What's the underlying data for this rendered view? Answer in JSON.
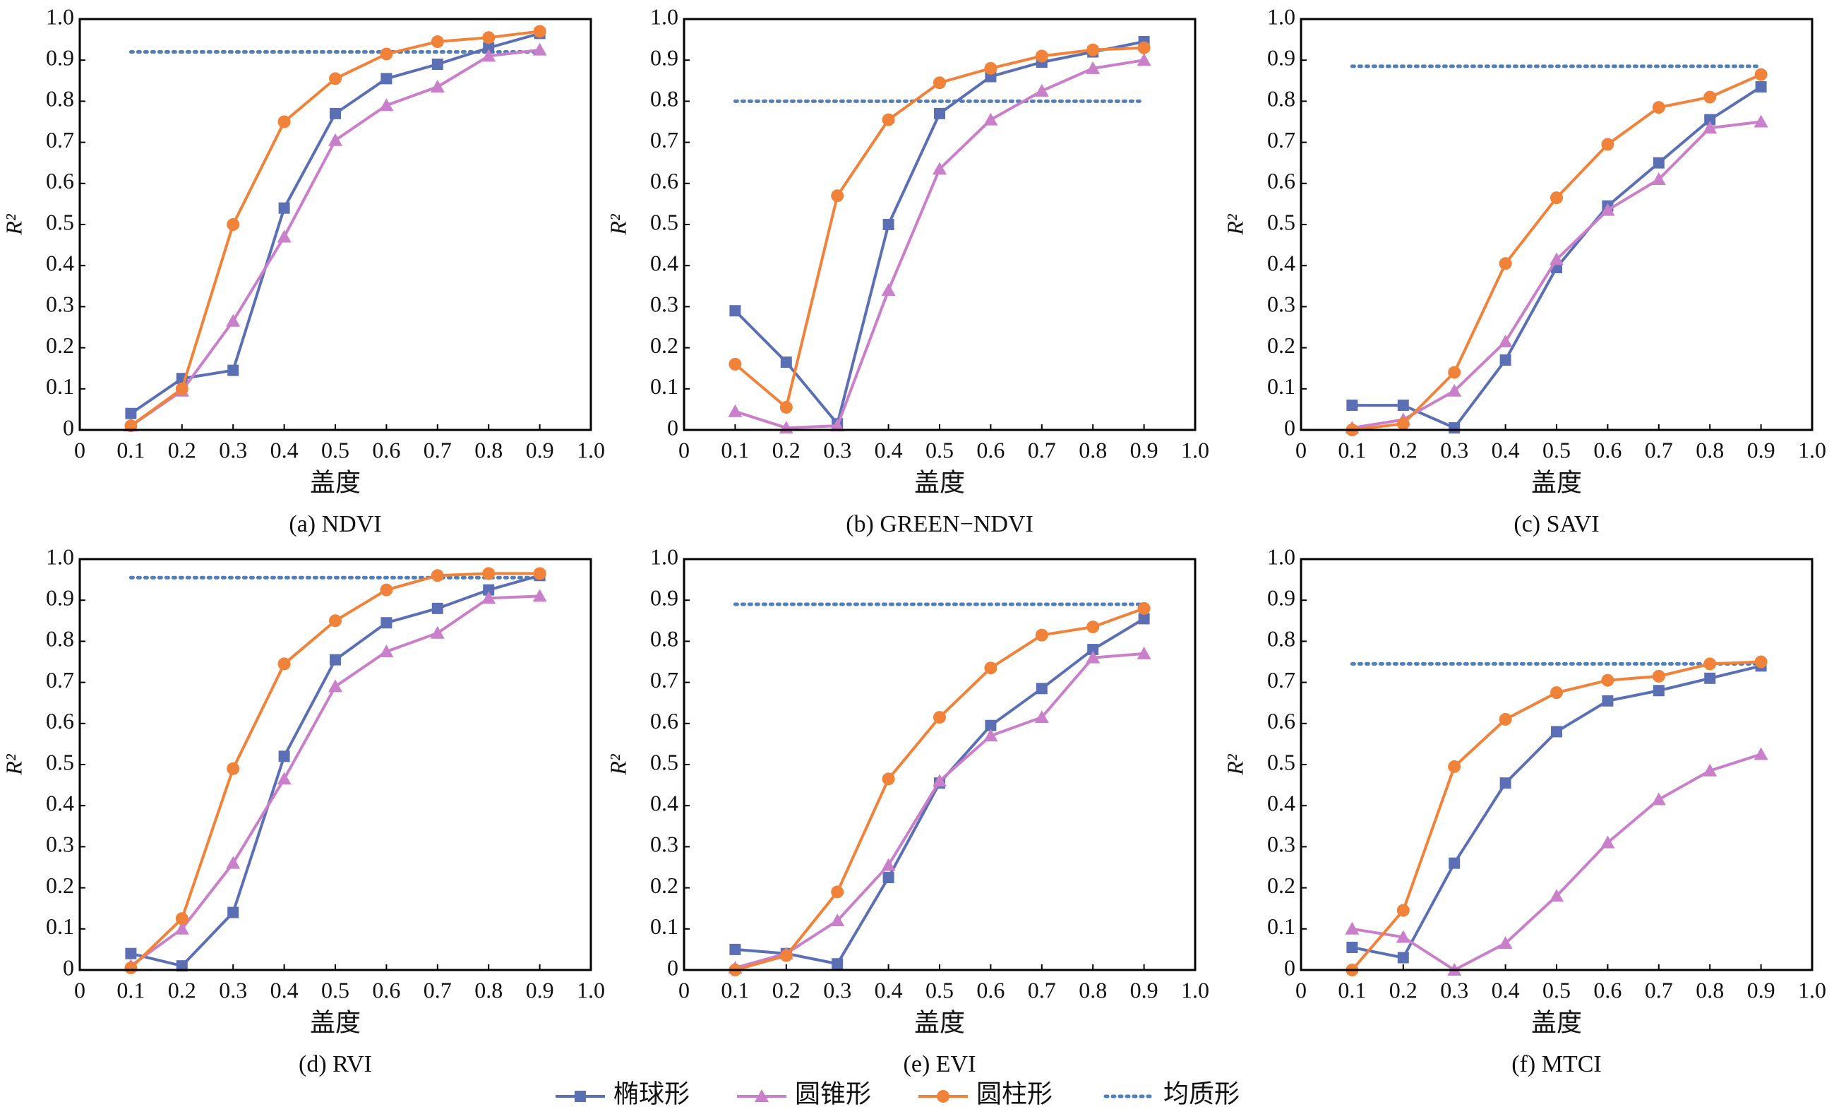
{
  "chart_data": [
    {
      "type": "line",
      "caption": "(a) NDVI",
      "xlabel": "盖度",
      "ylabel": "R²",
      "x": [
        0.1,
        0.2,
        0.3,
        0.4,
        0.5,
        0.6,
        0.7,
        0.8,
        0.9
      ],
      "series": [
        {
          "values": [
            0.04,
            0.125,
            0.145,
            0.54,
            0.77,
            0.855,
            0.89,
            0.93,
            0.965
          ]
        },
        {
          "values": [
            0.01,
            0.095,
            0.265,
            0.47,
            0.705,
            0.79,
            0.835,
            0.91,
            0.925
          ]
        },
        {
          "values": [
            0.01,
            0.1,
            0.5,
            0.75,
            0.855,
            0.915,
            0.945,
            0.955,
            0.97
          ]
        }
      ],
      "reference": 0.92,
      "xlim": [
        0,
        1
      ],
      "ylim": [
        0,
        1
      ],
      "xticks": [
        0,
        0.1,
        0.2,
        0.3,
        0.4,
        0.5,
        0.6,
        0.7,
        0.8,
        0.9,
        {
          "value": 1,
          "label": "1.0"
        }
      ],
      "yticks": [
        0,
        0.1,
        0.2,
        0.3,
        0.4,
        0.5,
        0.6,
        0.7,
        0.8,
        0.9,
        {
          "value": 1,
          "label": "1.0"
        }
      ]
    },
    {
      "type": "line",
      "caption": "(b) GREEN−NDVI",
      "xlabel": "盖度",
      "ylabel": "R²",
      "x": [
        0.1,
        0.2,
        0.3,
        0.4,
        0.5,
        0.6,
        0.7,
        0.8,
        0.9
      ],
      "series": [
        {
          "values": [
            0.29,
            0.165,
            0.015,
            0.5,
            0.77,
            0.86,
            0.895,
            0.92,
            0.945
          ]
        },
        {
          "values": [
            0.045,
            0.005,
            0.01,
            0.34,
            0.635,
            0.755,
            0.825,
            0.88,
            0.9
          ]
        },
        {
          "values": [
            0.16,
            0.055,
            0.57,
            0.755,
            0.845,
            0.88,
            0.91,
            0.925,
            0.93
          ]
        }
      ],
      "reference": 0.8,
      "xlim": [
        0,
        1
      ],
      "ylim": [
        0,
        1
      ],
      "xticks": [
        0,
        0.1,
        0.2,
        0.3,
        0.4,
        0.5,
        0.6,
        0.7,
        0.8,
        0.9,
        {
          "value": 1,
          "label": "1.0"
        }
      ],
      "yticks": [
        0,
        0.1,
        0.2,
        0.3,
        0.4,
        0.5,
        0.6,
        0.7,
        0.8,
        0.9,
        {
          "value": 1,
          "label": "1.0"
        }
      ]
    },
    {
      "type": "line",
      "caption": "(c) SAVI",
      "xlabel": "盖度",
      "ylabel": "R²",
      "x": [
        0.1,
        0.2,
        0.3,
        0.4,
        0.5,
        0.6,
        0.7,
        0.8,
        0.9
      ],
      "series": [
        {
          "values": [
            0.06,
            0.06,
            0.005,
            0.17,
            0.395,
            0.545,
            0.65,
            0.755,
            0.835
          ]
        },
        {
          "values": [
            0.005,
            0.025,
            0.095,
            0.215,
            0.415,
            0.535,
            0.61,
            0.735,
            0.75
          ]
        },
        {
          "values": [
            0.0,
            0.015,
            0.14,
            0.405,
            0.565,
            0.695,
            0.785,
            0.81,
            0.865
          ]
        }
      ],
      "reference": 0.885,
      "xlim": [
        0,
        1
      ],
      "ylim": [
        0,
        1
      ],
      "xticks": [
        0,
        0.1,
        0.2,
        0.3,
        0.4,
        0.5,
        0.6,
        0.7,
        0.8,
        0.9,
        {
          "value": 1,
          "label": "1.0"
        }
      ],
      "yticks": [
        0,
        0.1,
        0.2,
        0.3,
        0.4,
        0.5,
        0.6,
        0.7,
        0.8,
        0.9,
        {
          "value": 1,
          "label": "1.0"
        }
      ]
    },
    {
      "type": "line",
      "caption": "(d) RVI",
      "xlabel": "盖度",
      "ylabel": "R²",
      "x": [
        0.1,
        0.2,
        0.3,
        0.4,
        0.5,
        0.6,
        0.7,
        0.8,
        0.9
      ],
      "series": [
        {
          "values": [
            0.04,
            0.01,
            0.14,
            0.52,
            0.755,
            0.845,
            0.88,
            0.925,
            0.96
          ]
        },
        {
          "values": [
            0.01,
            0.1,
            0.26,
            0.465,
            0.69,
            0.775,
            0.82,
            0.905,
            0.91
          ]
        },
        {
          "values": [
            0.005,
            0.125,
            0.49,
            0.745,
            0.85,
            0.925,
            0.96,
            0.965,
            0.965
          ]
        }
      ],
      "reference": 0.955,
      "xlim": [
        0,
        1
      ],
      "ylim": [
        0,
        1
      ],
      "xticks": [
        0,
        0.1,
        0.2,
        0.3,
        0.4,
        0.5,
        0.6,
        0.7,
        0.8,
        0.9,
        {
          "value": 1,
          "label": "1.0"
        }
      ],
      "yticks": [
        0,
        0.1,
        0.2,
        0.3,
        0.4,
        0.5,
        0.6,
        0.7,
        0.8,
        0.9,
        {
          "value": 1,
          "label": "1.0"
        }
      ]
    },
    {
      "type": "line",
      "caption": "(e) EVI",
      "xlabel": "盖度",
      "ylabel": "R²",
      "x": [
        0.1,
        0.2,
        0.3,
        0.4,
        0.5,
        0.6,
        0.7,
        0.8,
        0.9
      ],
      "series": [
        {
          "values": [
            0.05,
            0.04,
            0.015,
            0.225,
            0.455,
            0.595,
            0.685,
            0.78,
            0.855
          ]
        },
        {
          "values": [
            0.005,
            0.04,
            0.12,
            0.255,
            0.46,
            0.57,
            0.615,
            0.76,
            0.77
          ]
        },
        {
          "values": [
            0.0,
            0.035,
            0.19,
            0.465,
            0.615,
            0.735,
            0.815,
            0.835,
            0.88
          ]
        }
      ],
      "reference": 0.89,
      "xlim": [
        0,
        1
      ],
      "ylim": [
        0,
        1
      ],
      "xticks": [
        0,
        0.1,
        0.2,
        0.3,
        0.4,
        0.5,
        0.6,
        0.7,
        0.8,
        0.9,
        {
          "value": 1,
          "label": "1.0"
        }
      ],
      "yticks": [
        0,
        0.1,
        0.2,
        0.3,
        0.4,
        0.5,
        0.6,
        0.7,
        0.8,
        0.9,
        {
          "value": 1,
          "label": "1.0"
        }
      ]
    },
    {
      "type": "line",
      "caption": "(f) MTCI",
      "xlabel": "盖度",
      "ylabel": "R²",
      "x": [
        0.1,
        0.2,
        0.3,
        0.4,
        0.5,
        0.6,
        0.7,
        0.8,
        0.9
      ],
      "series": [
        {
          "values": [
            0.055,
            0.03,
            0.26,
            0.455,
            0.58,
            0.655,
            0.68,
            0.71,
            0.74
          ]
        },
        {
          "values": [
            0.1,
            0.08,
            0.0,
            0.065,
            0.18,
            0.31,
            0.415,
            0.485,
            0.525
          ]
        },
        {
          "values": [
            0.0,
            0.145,
            0.495,
            0.61,
            0.675,
            0.705,
            0.715,
            0.745,
            0.75
          ]
        }
      ],
      "reference": 0.745,
      "xlim": [
        0,
        1
      ],
      "ylim": [
        0,
        1
      ],
      "xticks": [
        0,
        0.1,
        0.2,
        0.3,
        0.4,
        0.5,
        0.6,
        0.7,
        0.8,
        0.9,
        {
          "value": 1,
          "label": "1.0"
        }
      ],
      "yticks": [
        0,
        0.1,
        0.2,
        0.3,
        0.4,
        0.5,
        0.6,
        0.7,
        0.8,
        0.9,
        {
          "value": 1,
          "label": "1.0"
        }
      ]
    }
  ],
  "legend": [
    {
      "name": "椭球形",
      "color": "#5b6fb5",
      "marker": "square"
    },
    {
      "name": "圆锥形",
      "color": "#c97fc9",
      "marker": "triangle"
    },
    {
      "name": "圆柱形",
      "color": "#f0823a",
      "marker": "circle"
    },
    {
      "name": "均质形",
      "color": "#4f7fbf",
      "marker": "dotted"
    }
  ]
}
